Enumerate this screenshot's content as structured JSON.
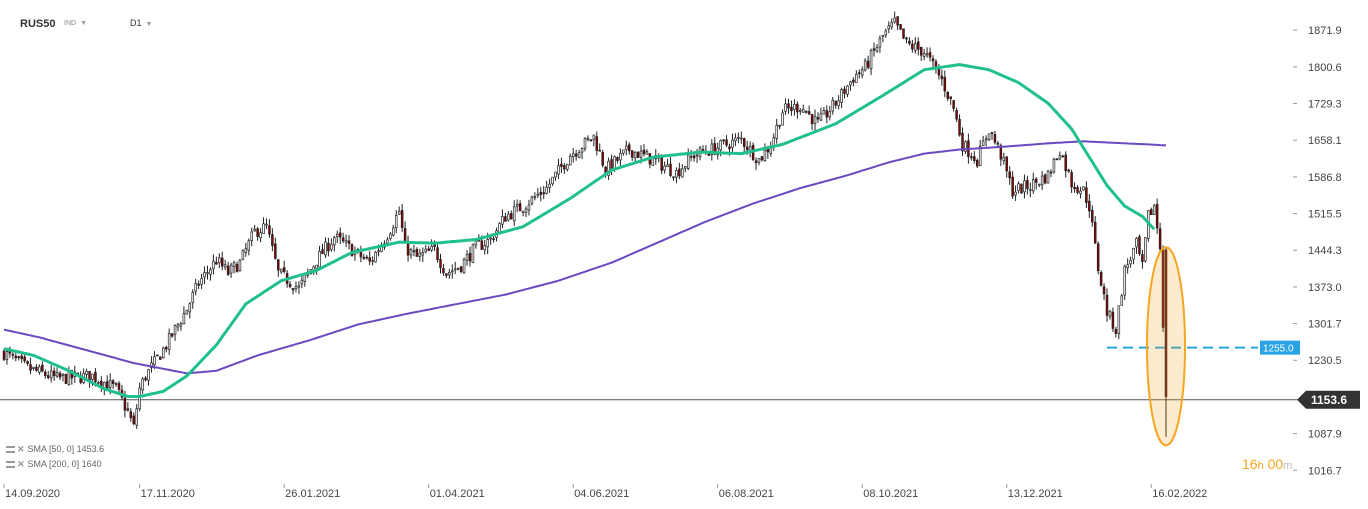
{
  "header": {
    "symbol": "RUS50",
    "market": "IND",
    "timeframe": "D1"
  },
  "legend": [
    {
      "label": "SMA [50, 0] 145",
      "value": "3.6"
    },
    {
      "label": "SMA [200, 0] 164",
      "value": "0"
    }
  ],
  "timer": {
    "hours": "16",
    "h_unit": "h",
    "minutes": "00",
    "m_unit": "m"
  },
  "colors": {
    "up": "#ffffff",
    "down": "#8b0000",
    "sma50": "#1fbf8f",
    "sma200": "#6a49c2",
    "level": "#29a3e6",
    "highlight": "#f5a623",
    "price_tag": "#333333"
  },
  "chart_data": {
    "type": "candlestick",
    "symbol": "RUS50",
    "timeframe": "D1",
    "ylim": [
      990,
      1915
    ],
    "y_ticks": [
      1871.9,
      1800.6,
      1729.3,
      1658.1,
      1586.8,
      1515.5,
      1444.3,
      1373.0,
      1301.7,
      1230.5,
      1087.9,
      1016.7
    ],
    "x_ticks": [
      "14.09.2020",
      "17.11.2020",
      "26.01.2021",
      "01.04.2021",
      "04.06.2021",
      "06.08.2021",
      "08.10.2021",
      "13.12.2021",
      "16.02.2022"
    ],
    "x_tick_index": [
      0,
      46,
      95,
      144,
      193,
      242,
      291,
      340,
      389
    ],
    "n_bars": 395,
    "close_anchors": [
      [
        0,
        1245
      ],
      [
        8,
        1215
      ],
      [
        18,
        1195
      ],
      [
        30,
        1200
      ],
      [
        38,
        1175
      ],
      [
        42,
        1130
      ],
      [
        44,
        1100
      ],
      [
        46,
        1175
      ],
      [
        48,
        1200
      ],
      [
        55,
        1260
      ],
      [
        62,
        1330
      ],
      [
        66,
        1380
      ],
      [
        72,
        1425
      ],
      [
        76,
        1400
      ],
      [
        80,
        1420
      ],
      [
        85,
        1480
      ],
      [
        89,
        1490
      ],
      [
        93,
        1400
      ],
      [
        100,
        1370
      ],
      [
        106,
        1425
      ],
      [
        112,
        1470
      ],
      [
        118,
        1445
      ],
      [
        124,
        1420
      ],
      [
        130,
        1475
      ],
      [
        134,
        1520
      ],
      [
        136,
        1450
      ],
      [
        140,
        1430
      ],
      [
        146,
        1445
      ],
      [
        150,
        1400
      ],
      [
        155,
        1415
      ],
      [
        160,
        1450
      ],
      [
        165,
        1465
      ],
      [
        170,
        1510
      ],
      [
        176,
        1530
      ],
      [
        184,
        1565
      ],
      [
        192,
        1630
      ],
      [
        200,
        1665
      ],
      [
        204,
        1600
      ],
      [
        212,
        1640
      ],
      [
        220,
        1620
      ],
      [
        228,
        1595
      ],
      [
        234,
        1630
      ],
      [
        240,
        1640
      ],
      [
        250,
        1660
      ],
      [
        256,
        1620
      ],
      [
        260,
        1650
      ],
      [
        264,
        1715
      ],
      [
        270,
        1725
      ],
      [
        276,
        1690
      ],
      [
        282,
        1730
      ],
      [
        288,
        1780
      ],
      [
        292,
        1800
      ],
      [
        298,
        1860
      ],
      [
        302,
        1885
      ],
      [
        306,
        1845
      ],
      [
        312,
        1830
      ],
      [
        318,
        1775
      ],
      [
        322,
        1720
      ],
      [
        325,
        1650
      ],
      [
        330,
        1620
      ],
      [
        334,
        1680
      ],
      [
        338,
        1630
      ],
      [
        342,
        1560
      ],
      [
        348,
        1570
      ],
      [
        354,
        1590
      ],
      [
        358,
        1640
      ],
      [
        362,
        1575
      ],
      [
        366,
        1560
      ],
      [
        368,
        1530
      ],
      [
        371,
        1410
      ],
      [
        374,
        1325
      ],
      [
        377,
        1290
      ],
      [
        380,
        1405
      ],
      [
        384,
        1455
      ],
      [
        386,
        1410
      ],
      [
        388,
        1510
      ],
      [
        390,
        1530
      ],
      [
        392,
        1450
      ],
      [
        394,
        1160
      ]
    ],
    "price_tag": {
      "value": 1153.6,
      "label": "1153.6"
    },
    "level_line": {
      "value": 1255.0,
      "label": "1255.0",
      "from_index": 374
    },
    "sma50": {
      "name": "SMA [50, 0]",
      "values": [
        [
          0,
          1253
        ],
        [
          10,
          1240
        ],
        [
          22,
          1210
        ],
        [
          34,
          1175
        ],
        [
          42,
          1160
        ],
        [
          46,
          1160
        ],
        [
          54,
          1170
        ],
        [
          62,
          1200
        ],
        [
          72,
          1260
        ],
        [
          82,
          1340
        ],
        [
          94,
          1385
        ],
        [
          106,
          1405
        ],
        [
          118,
          1440
        ],
        [
          134,
          1460
        ],
        [
          146,
          1458
        ],
        [
          160,
          1465
        ],
        [
          176,
          1490
        ],
        [
          192,
          1545
        ],
        [
          206,
          1600
        ],
        [
          220,
          1625
        ],
        [
          236,
          1635
        ],
        [
          250,
          1632
        ],
        [
          264,
          1650
        ],
        [
          282,
          1690
        ],
        [
          298,
          1745
        ],
        [
          312,
          1795
        ],
        [
          324,
          1805
        ],
        [
          334,
          1795
        ],
        [
          344,
          1770
        ],
        [
          354,
          1730
        ],
        [
          362,
          1680
        ],
        [
          368,
          1625
        ],
        [
          374,
          1570
        ],
        [
          380,
          1530
        ],
        [
          386,
          1510
        ],
        [
          390,
          1485
        ]
      ]
    },
    "sma200": {
      "name": "SMA [200, 0]",
      "values": [
        [
          0,
          1290
        ],
        [
          12,
          1275
        ],
        [
          28,
          1250
        ],
        [
          44,
          1225
        ],
        [
          62,
          1205
        ],
        [
          72,
          1210
        ],
        [
          86,
          1240
        ],
        [
          104,
          1270
        ],
        [
          120,
          1300
        ],
        [
          136,
          1320
        ],
        [
          152,
          1338
        ],
        [
          170,
          1358
        ],
        [
          188,
          1385
        ],
        [
          206,
          1420
        ],
        [
          222,
          1460
        ],
        [
          238,
          1500
        ],
        [
          254,
          1535
        ],
        [
          270,
          1565
        ],
        [
          286,
          1590
        ],
        [
          300,
          1615
        ],
        [
          312,
          1632
        ],
        [
          324,
          1640
        ],
        [
          338,
          1645
        ],
        [
          354,
          1652
        ],
        [
          366,
          1656
        ],
        [
          380,
          1652
        ],
        [
          388,
          1650
        ],
        [
          394,
          1648
        ]
      ]
    }
  }
}
